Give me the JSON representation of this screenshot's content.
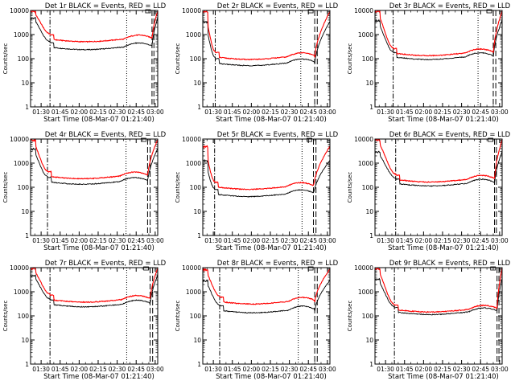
{
  "chart_data": [
    {
      "type": "line",
      "title": "Det 1r BLACK = Events, RED = LLD",
      "xlabel": "Start Time (08-Mar-07 01:21:40)",
      "ylabel": "Counts/sec",
      "xlim": [
        81.67,
        182.0
      ],
      "ylim": [
        1,
        10000
      ],
      "yscale": "log",
      "xticks": [
        {
          "value": 90,
          "label": "01:30"
        },
        {
          "value": 105,
          "label": "01:45"
        },
        {
          "value": 120,
          "label": "02:00"
        },
        {
          "value": 135,
          "label": "02:15"
        },
        {
          "value": 150,
          "label": "02:30"
        },
        {
          "value": 165,
          "label": "02:45"
        },
        {
          "value": 180,
          "label": "03:00"
        }
      ],
      "yticks": [
        {
          "value": 1,
          "label": "1"
        },
        {
          "value": 10,
          "label": "10"
        },
        {
          "value": 100,
          "label": "100"
        },
        {
          "value": 1000,
          "label": "1000"
        },
        {
          "value": 10000,
          "label": "10000"
        }
      ],
      "vlines": [
        {
          "x": 97,
          "style": "dashdot"
        },
        {
          "x": 157.5,
          "style": "dotted"
        },
        {
          "x": 177.5,
          "style": "dashed"
        },
        {
          "x": 179,
          "style": "dashed"
        }
      ],
      "series": [
        {
          "name": "Events",
          "color": "#000000",
          "base": 5000,
          "min": 230
        },
        {
          "name": "LLD",
          "color": "#ff0000",
          "base": 9500,
          "min": 490
        }
      ]
    },
    {
      "type": "line",
      "title": "Det 2r BLACK = Events, RED = LLD",
      "xlabel": "Start Time (08-Mar-07 01:21:40)",
      "ylabel": "Counts/sec",
      "xlim": [
        81.67,
        182.0
      ],
      "ylim": [
        1,
        10000
      ],
      "yscale": "log",
      "xticks": [
        {
          "value": 90,
          "label": "01:30"
        },
        {
          "value": 105,
          "label": "01:45"
        },
        {
          "value": 120,
          "label": "02:00"
        },
        {
          "value": 135,
          "label": "02:15"
        },
        {
          "value": 150,
          "label": "02:30"
        },
        {
          "value": 165,
          "label": "02:45"
        },
        {
          "value": 180,
          "label": "03:00"
        }
      ],
      "yticks": [
        {
          "value": 1,
          "label": "1"
        },
        {
          "value": 10,
          "label": "10"
        },
        {
          "value": 100,
          "label": "100"
        },
        {
          "value": 1000,
          "label": "1000"
        },
        {
          "value": 10000,
          "label": "10000"
        }
      ],
      "vlines": [
        {
          "x": 91.5,
          "style": "dashdot"
        },
        {
          "x": 159,
          "style": "dotted"
        },
        {
          "x": 170,
          "style": "dashed"
        },
        {
          "x": 172,
          "style": "dashed"
        }
      ],
      "series": [
        {
          "name": "Events",
          "color": "#000000",
          "base": 3500,
          "min": 50
        },
        {
          "name": "LLD",
          "color": "#ff0000",
          "base": 9000,
          "min": 90
        }
      ]
    },
    {
      "type": "line",
      "title": "Det 3r BLACK = Events, RED = LLD",
      "xlabel": "Start Time (08-Mar-07 01:21:40)",
      "ylabel": "Counts/sec",
      "xlim": [
        81.67,
        182.0
      ],
      "ylim": [
        1,
        10000
      ],
      "yscale": "log",
      "xticks": [
        {
          "value": 90,
          "label": "01:30"
        },
        {
          "value": 105,
          "label": "01:45"
        },
        {
          "value": 120,
          "label": "02:00"
        },
        {
          "value": 135,
          "label": "02:15"
        },
        {
          "value": 150,
          "label": "02:30"
        },
        {
          "value": 165,
          "label": "02:45"
        },
        {
          "value": 180,
          "label": "03:00"
        }
      ],
      "yticks": [
        {
          "value": 1,
          "label": "1"
        },
        {
          "value": 10,
          "label": "10"
        },
        {
          "value": 100,
          "label": "100"
        },
        {
          "value": 1000,
          "label": "1000"
        },
        {
          "value": 10000,
          "label": "10000"
        }
      ],
      "vlines": [
        {
          "x": 96,
          "style": "dashdot"
        },
        {
          "x": 163,
          "style": "dotted"
        },
        {
          "x": 175,
          "style": "dashed"
        },
        {
          "x": 177,
          "style": "dashed"
        }
      ],
      "series": [
        {
          "name": "Events",
          "color": "#000000",
          "base": 4000,
          "min": 90
        },
        {
          "name": "LLD",
          "color": "#ff0000",
          "base": 9500,
          "min": 130
        }
      ]
    },
    {
      "type": "line",
      "title": "Det 4r BLACK = Events, RED = LLD",
      "xlabel": "Start Time (08-Mar-07 01:21:40)",
      "ylabel": "Counts/sec",
      "xlim": [
        81.67,
        182.0
      ],
      "ylim": [
        1,
        10000
      ],
      "yscale": "log",
      "xticks": [
        {
          "value": 90,
          "label": "01:30"
        },
        {
          "value": 105,
          "label": "01:45"
        },
        {
          "value": 120,
          "label": "02:00"
        },
        {
          "value": 135,
          "label": "02:15"
        },
        {
          "value": 150,
          "label": "02:30"
        },
        {
          "value": 165,
          "label": "02:45"
        },
        {
          "value": 180,
          "label": "03:00"
        }
      ],
      "yticks": [
        {
          "value": 1,
          "label": "1"
        },
        {
          "value": 10,
          "label": "10"
        },
        {
          "value": 100,
          "label": "100"
        },
        {
          "value": 1000,
          "label": "1000"
        },
        {
          "value": 10000,
          "label": "10000"
        }
      ],
      "vlines": [
        {
          "x": 95,
          "style": "dashdot"
        },
        {
          "x": 157,
          "style": "dotted"
        },
        {
          "x": 174,
          "style": "dashed"
        },
        {
          "x": 176,
          "style": "dashed"
        }
      ],
      "series": [
        {
          "name": "Events",
          "color": "#000000",
          "base": 4000,
          "min": 130
        },
        {
          "name": "LLD",
          "color": "#ff0000",
          "base": 9500,
          "min": 220
        }
      ]
    },
    {
      "type": "line",
      "title": "Det 5r BLACK = Events, RED = LLD",
      "xlabel": "Start Time (08-Mar-07 01:21:40)",
      "ylabel": "Counts/sec",
      "xlim": [
        81.67,
        182.0
      ],
      "ylim": [
        1,
        10000
      ],
      "yscale": "log",
      "xticks": [
        {
          "value": 90,
          "label": "01:30"
        },
        {
          "value": 105,
          "label": "01:45"
        },
        {
          "value": 120,
          "label": "02:00"
        },
        {
          "value": 135,
          "label": "02:15"
        },
        {
          "value": 150,
          "label": "02:30"
        },
        {
          "value": 165,
          "label": "02:45"
        },
        {
          "value": 180,
          "label": "03:00"
        }
      ],
      "yticks": [
        {
          "value": 1,
          "label": "1"
        },
        {
          "value": 10,
          "label": "10"
        },
        {
          "value": 100,
          "label": "100"
        },
        {
          "value": 1000,
          "label": "1000"
        },
        {
          "value": 10000,
          "label": "10000"
        }
      ],
      "vlines": [
        {
          "x": 91,
          "style": "dashdot"
        },
        {
          "x": 160,
          "style": "dotted"
        },
        {
          "x": 169,
          "style": "dashed"
        },
        {
          "x": 171,
          "style": "dashed"
        }
      ],
      "series": [
        {
          "name": "Events",
          "color": "#000000",
          "base": 1300,
          "min": 40
        },
        {
          "name": "LLD",
          "color": "#ff0000",
          "base": 5000,
          "min": 80
        }
      ]
    },
    {
      "type": "line",
      "title": "Det 6r BLACK = Events, RED = LLD",
      "xlabel": "Start Time (08-Mar-07 01:21:40)",
      "ylabel": "Counts/sec",
      "xlim": [
        81.67,
        182.0
      ],
      "ylim": [
        1,
        10000
      ],
      "yscale": "log",
      "xticks": [
        {
          "value": 90,
          "label": "01:30"
        },
        {
          "value": 105,
          "label": "01:45"
        },
        {
          "value": 120,
          "label": "02:00"
        },
        {
          "value": 135,
          "label": "02:15"
        },
        {
          "value": 150,
          "label": "02:30"
        },
        {
          "value": 165,
          "label": "02:45"
        },
        {
          "value": 180,
          "label": "03:00"
        }
      ],
      "yticks": [
        {
          "value": 1,
          "label": "1"
        },
        {
          "value": 10,
          "label": "10"
        },
        {
          "value": 100,
          "label": "100"
        },
        {
          "value": 1000,
          "label": "1000"
        },
        {
          "value": 10000,
          "label": "10000"
        }
      ],
      "vlines": [
        {
          "x": 98,
          "style": "dashdot"
        },
        {
          "x": 164,
          "style": "dotted"
        },
        {
          "x": 176,
          "style": "dashed"
        },
        {
          "x": 177.5,
          "style": "dashed"
        }
      ],
      "series": [
        {
          "name": "Events",
          "color": "#000000",
          "base": 3000,
          "min": 110
        },
        {
          "name": "LLD",
          "color": "#ff0000",
          "base": 9500,
          "min": 160
        }
      ]
    },
    {
      "type": "line",
      "title": "Det 7r BLACK = Events, RED = LLD",
      "xlabel": "Start Time (08-Mar-07 01:21:40)",
      "ylabel": "Counts/sec",
      "xlim": [
        81.67,
        182.0
      ],
      "ylim": [
        1,
        10000
      ],
      "yscale": "log",
      "xticks": [
        {
          "value": 90,
          "label": "01:30"
        },
        {
          "value": 105,
          "label": "01:45"
        },
        {
          "value": 120,
          "label": "02:00"
        },
        {
          "value": 135,
          "label": "02:15"
        },
        {
          "value": 150,
          "label": "02:30"
        },
        {
          "value": 165,
          "label": "02:45"
        },
        {
          "value": 180,
          "label": "03:00"
        }
      ],
      "yticks": [
        {
          "value": 1,
          "label": "1"
        },
        {
          "value": 10,
          "label": "10"
        },
        {
          "value": 100,
          "label": "100"
        },
        {
          "value": 1000,
          "label": "1000"
        },
        {
          "value": 10000,
          "label": "10000"
        }
      ],
      "vlines": [
        {
          "x": 97,
          "style": "dashdot"
        },
        {
          "x": 157.5,
          "style": "dotted"
        },
        {
          "x": 176,
          "style": "dashed"
        },
        {
          "x": 178,
          "style": "dashed"
        }
      ],
      "series": [
        {
          "name": "Events",
          "color": "#000000",
          "base": 5000,
          "min": 230
        },
        {
          "name": "LLD",
          "color": "#ff0000",
          "base": 9500,
          "min": 360
        }
      ]
    },
    {
      "type": "line",
      "title": "Det 8r BLACK = Events, RED = LLD",
      "xlabel": "Start Time (08-Mar-07 01:21:40)",
      "ylabel": "Counts/sec",
      "xlim": [
        81.67,
        182.0
      ],
      "ylim": [
        1,
        10000
      ],
      "yscale": "log",
      "xticks": [
        {
          "value": 90,
          "label": "01:30"
        },
        {
          "value": 105,
          "label": "01:45"
        },
        {
          "value": 120,
          "label": "02:00"
        },
        {
          "value": 135,
          "label": "02:15"
        },
        {
          "value": 150,
          "label": "02:30"
        },
        {
          "value": 165,
          "label": "02:45"
        },
        {
          "value": 180,
          "label": "03:00"
        }
      ],
      "yticks": [
        {
          "value": 1,
          "label": "1"
        },
        {
          "value": 10,
          "label": "10"
        },
        {
          "value": 100,
          "label": "100"
        },
        {
          "value": 1000,
          "label": "1000"
        },
        {
          "value": 10000,
          "label": "10000"
        }
      ],
      "vlines": [
        {
          "x": 95,
          "style": "dashdot"
        },
        {
          "x": 157,
          "style": "dotted"
        },
        {
          "x": 170,
          "style": "dashed"
        },
        {
          "x": 172,
          "style": "dashed"
        }
      ],
      "series": [
        {
          "name": "Events",
          "color": "#000000",
          "base": 3000,
          "min": 130
        },
        {
          "name": "LLD",
          "color": "#ff0000",
          "base": 8500,
          "min": 300
        }
      ]
    },
    {
      "type": "line",
      "title": "Det 9r BLACK = Events, RED = LLD",
      "xlabel": "Start Time (08-Mar-07 01:21:40)",
      "ylabel": "Counts/sec",
      "xlim": [
        81.67,
        182.0
      ],
      "ylim": [
        1,
        10000
      ],
      "yscale": "log",
      "xticks": [
        {
          "value": 90,
          "label": "01:30"
        },
        {
          "value": 105,
          "label": "01:45"
        },
        {
          "value": 120,
          "label": "02:00"
        },
        {
          "value": 135,
          "label": "02:15"
        },
        {
          "value": 150,
          "label": "02:30"
        },
        {
          "value": 165,
          "label": "02:45"
        },
        {
          "value": 180,
          "label": "03:00"
        }
      ],
      "yticks": [
        {
          "value": 1,
          "label": "1"
        },
        {
          "value": 10,
          "label": "10"
        },
        {
          "value": 100,
          "label": "100"
        },
        {
          "value": 1000,
          "label": "1000"
        },
        {
          "value": 10000,
          "label": "10000"
        }
      ],
      "vlines": [
        {
          "x": 97,
          "style": "dashdot"
        },
        {
          "x": 165,
          "style": "dotted"
        },
        {
          "x": 178,
          "style": "dashed"
        },
        {
          "x": 179.5,
          "style": "dashed"
        }
      ],
      "series": [
        {
          "name": "Events",
          "color": "#000000",
          "base": 3500,
          "min": 110
        },
        {
          "name": "LLD",
          "color": "#ff0000",
          "base": 9500,
          "min": 140
        }
      ]
    }
  ]
}
